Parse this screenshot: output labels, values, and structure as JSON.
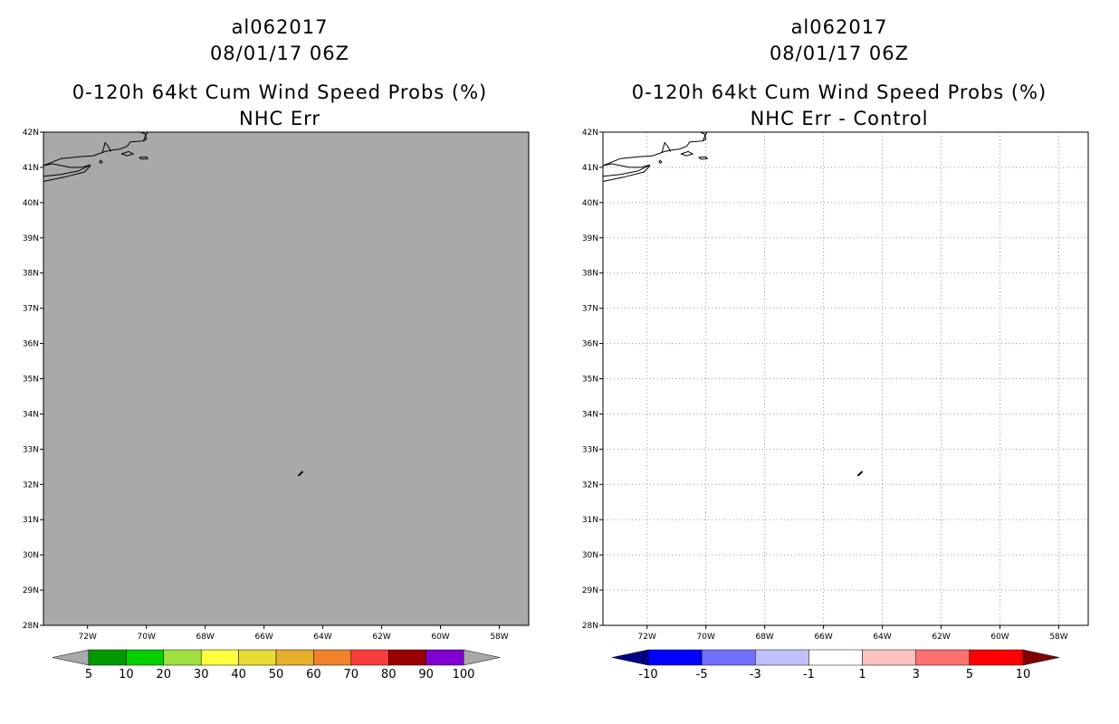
{
  "panels": [
    {
      "id": "left",
      "storm_id": "al062017",
      "datetime": "08/01/17 06Z",
      "product": "0-120h 64kt Cum Wind Speed Probs (%)",
      "subtitle": "NHC Err",
      "background": "#a9a9a9",
      "gridlines": false,
      "colorbar": {
        "low_arrow_color": "#a9a9a9",
        "high_arrow_color": "#a9a9a9",
        "colors": [
          "#009a00",
          "#00d000",
          "#a0e040",
          "#ffff40",
          "#e6dc32",
          "#e6ae2d",
          "#f0822a",
          "#fa3c3c",
          "#9a0000",
          "#8000d0"
        ],
        "labels": [
          "5",
          "10",
          "20",
          "30",
          "40",
          "50",
          "60",
          "70",
          "80",
          "90",
          "100"
        ]
      }
    },
    {
      "id": "right",
      "storm_id": "al062017",
      "datetime": "08/01/17 06Z",
      "product": "0-120h 64kt Cum Wind Speed Probs (%)",
      "subtitle": "NHC Err - Control",
      "background": "#ffffff",
      "gridlines": true,
      "colorbar": {
        "low_arrow_color": "#000080",
        "high_arrow_color": "#800000",
        "colors": [
          "#0000ff",
          "#7070ff",
          "#c0c0ff",
          "#ffffff",
          "#ffc0c0",
          "#ff7070",
          "#ff0000"
        ],
        "labels": [
          "-10",
          "-5",
          "-3",
          "-1",
          "1",
          "3",
          "5",
          "10"
        ]
      }
    }
  ],
  "map": {
    "lat_labels": [
      "42N",
      "41N",
      "40N",
      "39N",
      "38N",
      "37N",
      "36N",
      "35N",
      "34N",
      "33N",
      "32N",
      "31N",
      "30N",
      "29N",
      "28N"
    ],
    "lon_labels": [
      "72W",
      "70W",
      "68W",
      "66W",
      "64W",
      "62W",
      "60W",
      "58W"
    ],
    "lat_range": [
      28,
      42
    ],
    "lon_range": [
      -73.5,
      -57.0
    ]
  }
}
